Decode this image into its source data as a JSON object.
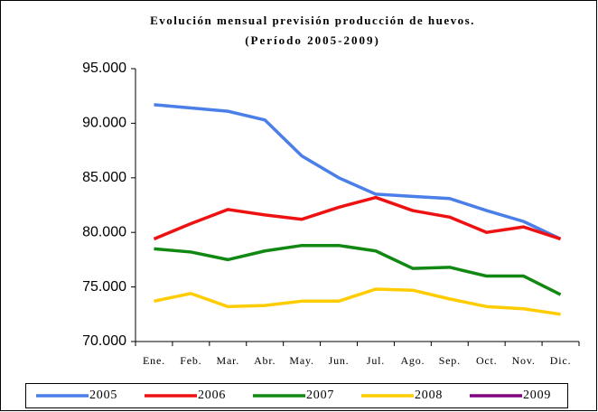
{
  "chart_data": {
    "type": "line",
    "title": "Evolución mensual previsión producción de huevos.",
    "subtitle": "(Período 2005-2009)",
    "categories": [
      "Ene.",
      "Feb.",
      "Mar.",
      "Abr.",
      "May.",
      "Jun.",
      "Jul.",
      "Ago.",
      "Sep.",
      "Oct.",
      "Nov.",
      "Dic."
    ],
    "ylim": [
      70000,
      95000
    ],
    "yticks": [
      {
        "value": 70000,
        "label": "70.000"
      },
      {
        "value": 75000,
        "label": "75.000"
      },
      {
        "value": 80000,
        "label": "80.000"
      },
      {
        "value": 85000,
        "label": "85.000"
      },
      {
        "value": 90000,
        "label": "90.000"
      },
      {
        "value": 95000,
        "label": "95.000"
      }
    ],
    "grid": false,
    "legend": "bottom",
    "series": [
      {
        "name": "2005",
        "color": "#4a7ee8",
        "values": [
          91700,
          91400,
          91100,
          90300,
          87000,
          85000,
          83500,
          83300,
          83100,
          82000,
          81000,
          79400
        ]
      },
      {
        "name": "2006",
        "color": "#ee1111",
        "values": [
          79400,
          80800,
          82100,
          81600,
          81200,
          82300,
          83200,
          82000,
          81400,
          80000,
          80500,
          79400
        ]
      },
      {
        "name": "2007",
        "color": "#118811",
        "values": [
          78500,
          78200,
          77500,
          78300,
          78800,
          78800,
          78300,
          76700,
          76800,
          76000,
          76000,
          74300
        ]
      },
      {
        "name": "2008",
        "color": "#ffcc00",
        "values": [
          73700,
          74400,
          73200,
          73300,
          73700,
          73700,
          74800,
          74700,
          73900,
          73200,
          73000,
          72500
        ]
      },
      {
        "name": "2009",
        "color": "#800080",
        "values": [
          null,
          null,
          null,
          null,
          null,
          null,
          null,
          null,
          null,
          null,
          null,
          null
        ]
      }
    ]
  }
}
